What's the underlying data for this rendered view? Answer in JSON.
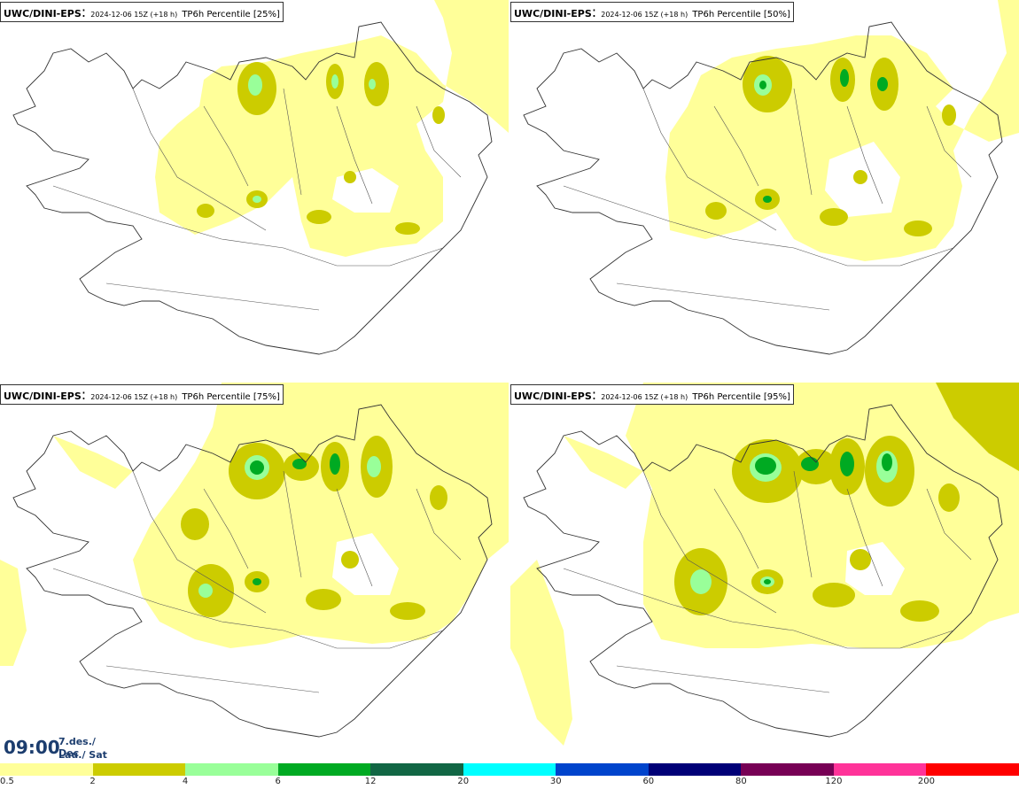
{
  "panels": [
    {
      "model": "UWC/DINI-EPS",
      "run": "2024-12-06 15Z (+18 h)",
      "desc": "TP6h Percentile [25%]"
    },
    {
      "model": "UWC/DINI-EPS",
      "run": "2024-12-06 15Z (+18 h)",
      "desc": "TP6h Percentile [50%]"
    },
    {
      "model": "UWC/DINI-EPS",
      "run": "2024-12-06 15Z (+18 h)",
      "desc": "TP6h Percentile [75%]"
    },
    {
      "model": "UWC/DINI-EPS",
      "run": "2024-12-06 15Z (+18 h)",
      "desc": "TP6h Percentile [95%]"
    }
  ],
  "valid": {
    "time": "09:00",
    "date": "7.des./ Dec",
    "day": "Lau./ Sat"
  },
  "legend": {
    "labels": [
      "0.5",
      "2",
      "4",
      "6",
      "12",
      "20",
      "30",
      "60",
      "80",
      "120",
      "200"
    ],
    "colors": [
      "#ffff99",
      "#cccc00",
      "#99ff99",
      "#00aa22",
      "#116644",
      "#00ffff",
      "#0044cc",
      "#000077",
      "#770055",
      "#ff3399",
      "#ff0000"
    ]
  }
}
